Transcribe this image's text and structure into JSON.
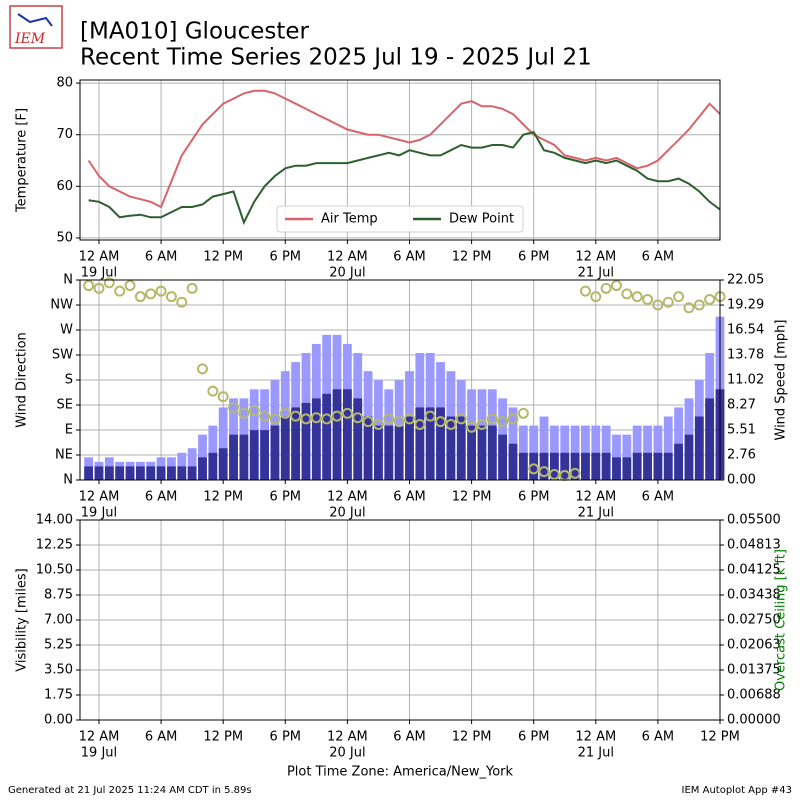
{
  "header": {
    "title": "[MA010] Gloucester",
    "subtitle": "Recent Time Series 2025 Jul 19 - 2025 Jul 21",
    "logo": "IEM"
  },
  "footer": {
    "left": "Generated at 21 Jul 2025 11:24 AM CDT in 5.89s",
    "right": "IEM Autoplot App #43"
  },
  "chart_data": [
    {
      "type": "line",
      "ylabel": "Temperature [F]",
      "ylim": [
        49.6,
        80.6
      ],
      "yticks": [
        50,
        60,
        70,
        80
      ],
      "grid": true,
      "legend": "lower center",
      "xlim": [
        "2025-07-18T22:10",
        "2025-07-21T12:00"
      ],
      "xticks": [
        {
          "value": "2025-07-19T00:00",
          "label": "12 AM",
          "date": "19 Jul"
        },
        {
          "value": "2025-07-19T06:00",
          "label": "6 AM"
        },
        {
          "value": "2025-07-19T12:00",
          "label": "12 PM"
        },
        {
          "value": "2025-07-19T18:00",
          "label": "6 PM"
        },
        {
          "value": "2025-07-20T00:00",
          "label": "12 AM",
          "date": "20 Jul"
        },
        {
          "value": "2025-07-20T06:00",
          "label": "6 AM"
        },
        {
          "value": "2025-07-20T12:00",
          "label": "12 PM"
        },
        {
          "value": "2025-07-20T18:00",
          "label": "6 PM"
        },
        {
          "value": "2025-07-21T00:00",
          "label": "12 AM",
          "date": "21 Jul"
        },
        {
          "value": "2025-07-21T06:00",
          "label": "6 AM"
        }
      ],
      "x": [
        "2025-07-18T23:00",
        "2025-07-19T00:00",
        "2025-07-19T01:00",
        "2025-07-19T02:00",
        "2025-07-19T03:00",
        "2025-07-19T04:00",
        "2025-07-19T05:00",
        "2025-07-19T06:00",
        "2025-07-19T07:00",
        "2025-07-19T08:00",
        "2025-07-19T09:00",
        "2025-07-19T10:00",
        "2025-07-19T11:00",
        "2025-07-19T12:00",
        "2025-07-19T13:00",
        "2025-07-19T14:00",
        "2025-07-19T15:00",
        "2025-07-19T16:00",
        "2025-07-19T17:00",
        "2025-07-19T18:00",
        "2025-07-19T19:00",
        "2025-07-19T20:00",
        "2025-07-19T21:00",
        "2025-07-19T22:00",
        "2025-07-19T23:00",
        "2025-07-20T00:00",
        "2025-07-20T01:00",
        "2025-07-20T02:00",
        "2025-07-20T03:00",
        "2025-07-20T04:00",
        "2025-07-20T05:00",
        "2025-07-20T06:00",
        "2025-07-20T07:00",
        "2025-07-20T08:00",
        "2025-07-20T09:00",
        "2025-07-20T10:00",
        "2025-07-20T11:00",
        "2025-07-20T12:00",
        "2025-07-20T13:00",
        "2025-07-20T14:00",
        "2025-07-20T15:00",
        "2025-07-20T16:00",
        "2025-07-20T17:00",
        "2025-07-20T18:00",
        "2025-07-20T19:00",
        "2025-07-20T20:00",
        "2025-07-20T21:00",
        "2025-07-20T22:00",
        "2025-07-20T23:00",
        "2025-07-21T00:00",
        "2025-07-21T01:00",
        "2025-07-21T02:00",
        "2025-07-21T03:00",
        "2025-07-21T04:00",
        "2025-07-21T05:00",
        "2025-07-21T06:00",
        "2025-07-21T07:00",
        "2025-07-21T08:00",
        "2025-07-21T09:00",
        "2025-07-21T10:00",
        "2025-07-21T11:00",
        "2025-07-21T12:00"
      ],
      "series": [
        {
          "name": "Air Temp",
          "color": "#d9636b",
          "values": [
            65,
            62,
            60,
            59,
            58,
            57.5,
            57,
            56,
            61,
            66,
            69,
            72,
            74,
            76,
            77,
            78,
            78.5,
            78.5,
            78,
            77,
            76,
            75,
            74,
            73,
            72,
            71,
            70.5,
            70,
            70,
            69.5,
            69,
            68.5,
            69,
            70,
            72,
            74,
            76,
            76.5,
            75.5,
            75.5,
            75,
            74,
            72,
            70,
            69,
            68,
            66,
            65.5,
            65,
            65.5,
            65,
            65.5,
            64.5,
            63.5,
            64,
            65,
            67,
            69,
            71,
            73.5,
            76,
            74
          ]
        },
        {
          "name": "Dew Point",
          "color": "#2f5e2f",
          "values": [
            57.3,
            57,
            56,
            54,
            54.3,
            54.5,
            54,
            54,
            55,
            56,
            56,
            56.5,
            58,
            58.5,
            59,
            53,
            57,
            60,
            62,
            63.5,
            64,
            64,
            64.5,
            64.5,
            64.5,
            64.5,
            65,
            65.5,
            66,
            66.5,
            66,
            67,
            66.5,
            66,
            66,
            67,
            68,
            67.5,
            67.5,
            68,
            68,
            67.5,
            70,
            70.5,
            67,
            66.5,
            65.5,
            65,
            64.5,
            65,
            64.5,
            65,
            64,
            63,
            61.5,
            61,
            61,
            61.5,
            60.5,
            59,
            57,
            55.5
          ]
        }
      ]
    },
    {
      "type": "combo",
      "ylabel": "Wind Direction",
      "y2label": "Wind Speed [mph]",
      "grid": true,
      "ylim": [
        0,
        360
      ],
      "yticks": [
        {
          "value": 0,
          "label": "N"
        },
        {
          "value": 45,
          "label": "NE"
        },
        {
          "value": 90,
          "label": "E"
        },
        {
          "value": 135,
          "label": "SE"
        },
        {
          "value": 180,
          "label": "S"
        },
        {
          "value": 225,
          "label": "SW"
        },
        {
          "value": 270,
          "label": "W"
        },
        {
          "value": 315,
          "label": "NW"
        },
        {
          "value": 360,
          "label": "N"
        }
      ],
      "y2lim": [
        0,
        22.05
      ],
      "y2ticks": [
        {
          "value": 0,
          "label": "0.00"
        },
        {
          "value": 2.76,
          "label": "2.76"
        },
        {
          "value": 5.51,
          "label": "5.51"
        },
        {
          "value": 8.27,
          "label": "8.27"
        },
        {
          "value": 11.02,
          "label": "11.02"
        },
        {
          "value": 13.78,
          "label": "13.78"
        },
        {
          "value": 16.54,
          "label": "16.54"
        },
        {
          "value": 19.29,
          "label": "19.29"
        },
        {
          "value": 22.05,
          "label": "22.05"
        }
      ],
      "xlim": [
        "2025-07-18T22:10",
        "2025-07-21T12:00"
      ],
      "xticks": [
        {
          "value": "2025-07-19T00:00",
          "label": "12 AM",
          "date": "19 Jul"
        },
        {
          "value": "2025-07-19T06:00",
          "label": "6 AM"
        },
        {
          "value": "2025-07-19T12:00",
          "label": "12 PM"
        },
        {
          "value": "2025-07-19T18:00",
          "label": "6 PM"
        },
        {
          "value": "2025-07-20T00:00",
          "label": "12 AM",
          "date": "20 Jul"
        },
        {
          "value": "2025-07-20T06:00",
          "label": "6 AM"
        },
        {
          "value": "2025-07-20T12:00",
          "label": "12 PM"
        },
        {
          "value": "2025-07-20T18:00",
          "label": "6 PM"
        },
        {
          "value": "2025-07-21T00:00",
          "label": "12 AM",
          "date": "21 Jul"
        },
        {
          "value": "2025-07-21T06:00",
          "label": "6 AM"
        }
      ],
      "x": [
        "2025-07-18T23:00",
        "2025-07-19T00:00",
        "2025-07-19T01:00",
        "2025-07-19T02:00",
        "2025-07-19T03:00",
        "2025-07-19T04:00",
        "2025-07-19T05:00",
        "2025-07-19T06:00",
        "2025-07-19T07:00",
        "2025-07-19T08:00",
        "2025-07-19T09:00",
        "2025-07-19T10:00",
        "2025-07-19T11:00",
        "2025-07-19T12:00",
        "2025-07-19T13:00",
        "2025-07-19T14:00",
        "2025-07-19T15:00",
        "2025-07-19T16:00",
        "2025-07-19T17:00",
        "2025-07-19T18:00",
        "2025-07-19T19:00",
        "2025-07-19T20:00",
        "2025-07-19T21:00",
        "2025-07-19T22:00",
        "2025-07-19T23:00",
        "2025-07-20T00:00",
        "2025-07-20T01:00",
        "2025-07-20T02:00",
        "2025-07-20T03:00",
        "2025-07-20T04:00",
        "2025-07-20T05:00",
        "2025-07-20T06:00",
        "2025-07-20T07:00",
        "2025-07-20T08:00",
        "2025-07-20T09:00",
        "2025-07-20T10:00",
        "2025-07-20T11:00",
        "2025-07-20T12:00",
        "2025-07-20T13:00",
        "2025-07-20T14:00",
        "2025-07-20T15:00",
        "2025-07-20T16:00",
        "2025-07-20T17:00",
        "2025-07-20T18:00",
        "2025-07-20T19:00",
        "2025-07-20T20:00",
        "2025-07-20T21:00",
        "2025-07-20T22:00",
        "2025-07-20T23:00",
        "2025-07-21T00:00",
        "2025-07-21T01:00",
        "2025-07-21T02:00",
        "2025-07-21T03:00",
        "2025-07-21T04:00",
        "2025-07-21T05:00",
        "2025-07-21T06:00",
        "2025-07-21T07:00",
        "2025-07-21T08:00",
        "2025-07-21T09:00",
        "2025-07-21T10:00",
        "2025-07-21T11:00",
        "2025-07-21T12:00"
      ],
      "series": [
        {
          "type": "bar",
          "axis": "y2",
          "color": "#9999ff",
          "values": [
            2.5,
            2,
            2.5,
            2,
            2,
            2,
            2,
            2.5,
            2.5,
            3,
            3.5,
            5,
            6,
            8,
            9,
            9,
            10,
            10,
            11,
            12,
            13,
            14,
            15,
            16,
            16,
            15,
            14,
            12,
            11,
            10,
            11,
            12,
            14,
            14,
            13,
            12,
            11,
            10,
            10,
            10,
            9,
            8,
            6,
            6,
            7,
            6,
            6,
            6,
            6,
            6,
            6,
            5,
            5,
            6,
            6,
            6,
            7,
            8,
            9,
            11,
            14,
            18
          ]
        },
        {
          "type": "bar",
          "axis": "y2",
          "color": "#333399",
          "values": [
            1.5,
            1.5,
            1.5,
            1.5,
            1.5,
            1.5,
            1.5,
            1.5,
            1.5,
            1.5,
            1.5,
            2.5,
            3,
            3.5,
            5,
            5,
            5.5,
            5.5,
            6,
            7,
            8,
            8.5,
            9,
            9.5,
            10,
            10,
            9,
            7,
            6,
            6,
            6,
            7,
            8,
            8,
            8,
            7,
            7,
            6,
            6,
            6,
            5,
            4,
            3,
            3,
            3,
            3,
            3,
            3,
            3,
            3,
            3,
            2.5,
            2.5,
            3,
            3,
            3,
            3,
            4,
            5,
            7,
            9,
            10
          ]
        },
        {
          "type": "scatter",
          "color": "#b5b86b",
          "values": [
            350,
            345,
            355,
            340,
            350,
            330,
            335,
            340,
            330,
            320,
            345,
            200,
            160,
            150,
            130,
            120,
            125,
            115,
            110,
            120,
            115,
            110,
            112,
            110,
            115,
            120,
            112,
            105,
            100,
            110,
            105,
            110,
            100,
            115,
            105,
            100,
            110,
            95,
            100,
            110,
            105,
            110,
            120,
            20,
            15,
            10,
            8,
            12,
            340,
            330,
            345,
            350,
            335,
            330,
            325,
            315,
            320,
            330,
            310,
            315,
            325,
            330
          ]
        }
      ]
    },
    {
      "type": "line",
      "ylabel": "Visibility [miles]",
      "y2label": "Overcast Ceiling [k ft]",
      "y2label_color": "#008000",
      "xlabel": "Plot Time Zone: America/New_York",
      "grid": true,
      "ylim": [
        0,
        14
      ],
      "yticks": [
        {
          "value": 0,
          "label": "0.00"
        },
        {
          "value": 1.75,
          "label": "1.75"
        },
        {
          "value": 3.5,
          "label": "3.50"
        },
        {
          "value": 5.25,
          "label": "5.25"
        },
        {
          "value": 7,
          "label": "7.00"
        },
        {
          "value": 8.75,
          "label": "8.75"
        },
        {
          "value": 10.5,
          "label": "10.50"
        },
        {
          "value": 12.25,
          "label": "12.25"
        },
        {
          "value": 14,
          "label": "14.00"
        }
      ],
      "y2lim": [
        0,
        0.055
      ],
      "y2ticks": [
        {
          "value": 0,
          "label": "0.00000"
        },
        {
          "value": 0.006875,
          "label": "0.00688"
        },
        {
          "value": 0.01375,
          "label": "0.01375"
        },
        {
          "value": 0.020625,
          "label": "0.02063"
        },
        {
          "value": 0.0275,
          "label": "0.02750"
        },
        {
          "value": 0.034375,
          "label": "0.03438"
        },
        {
          "value": 0.04125,
          "label": "0.04125"
        },
        {
          "value": 0.048125,
          "label": "0.04813"
        },
        {
          "value": 0.055,
          "label": "0.05500"
        }
      ],
      "xlim": [
        "2025-07-18T22:10",
        "2025-07-21T12:00"
      ],
      "xticks": [
        {
          "value": "2025-07-19T00:00",
          "label": "12 AM",
          "date": "19 Jul"
        },
        {
          "value": "2025-07-19T06:00",
          "label": "6 AM"
        },
        {
          "value": "2025-07-19T12:00",
          "label": "12 PM"
        },
        {
          "value": "2025-07-19T18:00",
          "label": "6 PM"
        },
        {
          "value": "2025-07-20T00:00",
          "label": "12 AM",
          "date": "20 Jul"
        },
        {
          "value": "2025-07-20T06:00",
          "label": "6 AM"
        },
        {
          "value": "2025-07-20T12:00",
          "label": "12 PM"
        },
        {
          "value": "2025-07-20T18:00",
          "label": "6 PM"
        },
        {
          "value": "2025-07-21T00:00",
          "label": "12 AM",
          "date": "21 Jul"
        },
        {
          "value": "2025-07-21T06:00",
          "label": "6 AM"
        },
        {
          "value": "2025-07-21T12:00",
          "label": "12 PM"
        }
      ],
      "series": []
    }
  ]
}
